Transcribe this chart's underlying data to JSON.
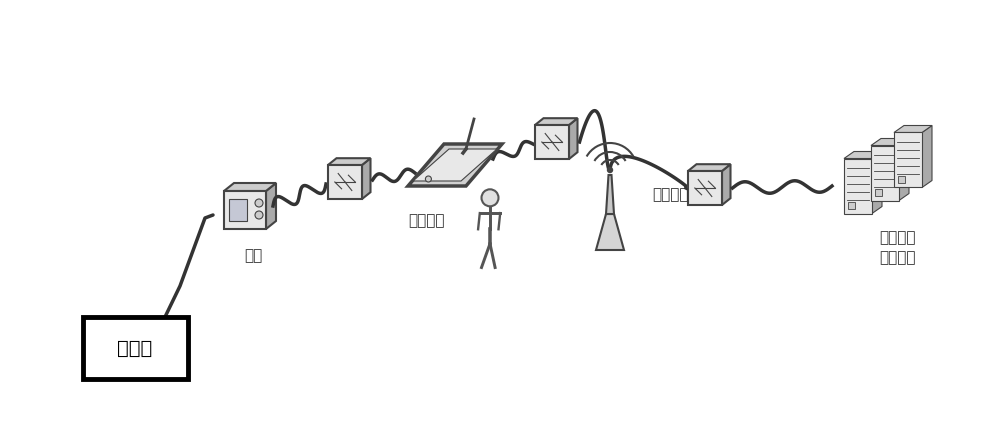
{
  "bg_color": "#ffffff",
  "line_color": "#333333",
  "box_color": "#000000",
  "fig_width": 10.0,
  "fig_height": 4.3,
  "labels": {
    "transformer": "变压器",
    "instrument": "仪器",
    "mobile": "移动终端",
    "wireless": "无线网络",
    "datacenter": "数据评价\n诊断中心"
  },
  "label_fontsize": 11,
  "lw_thick": 2.5,
  "lw_thin": 1.5
}
